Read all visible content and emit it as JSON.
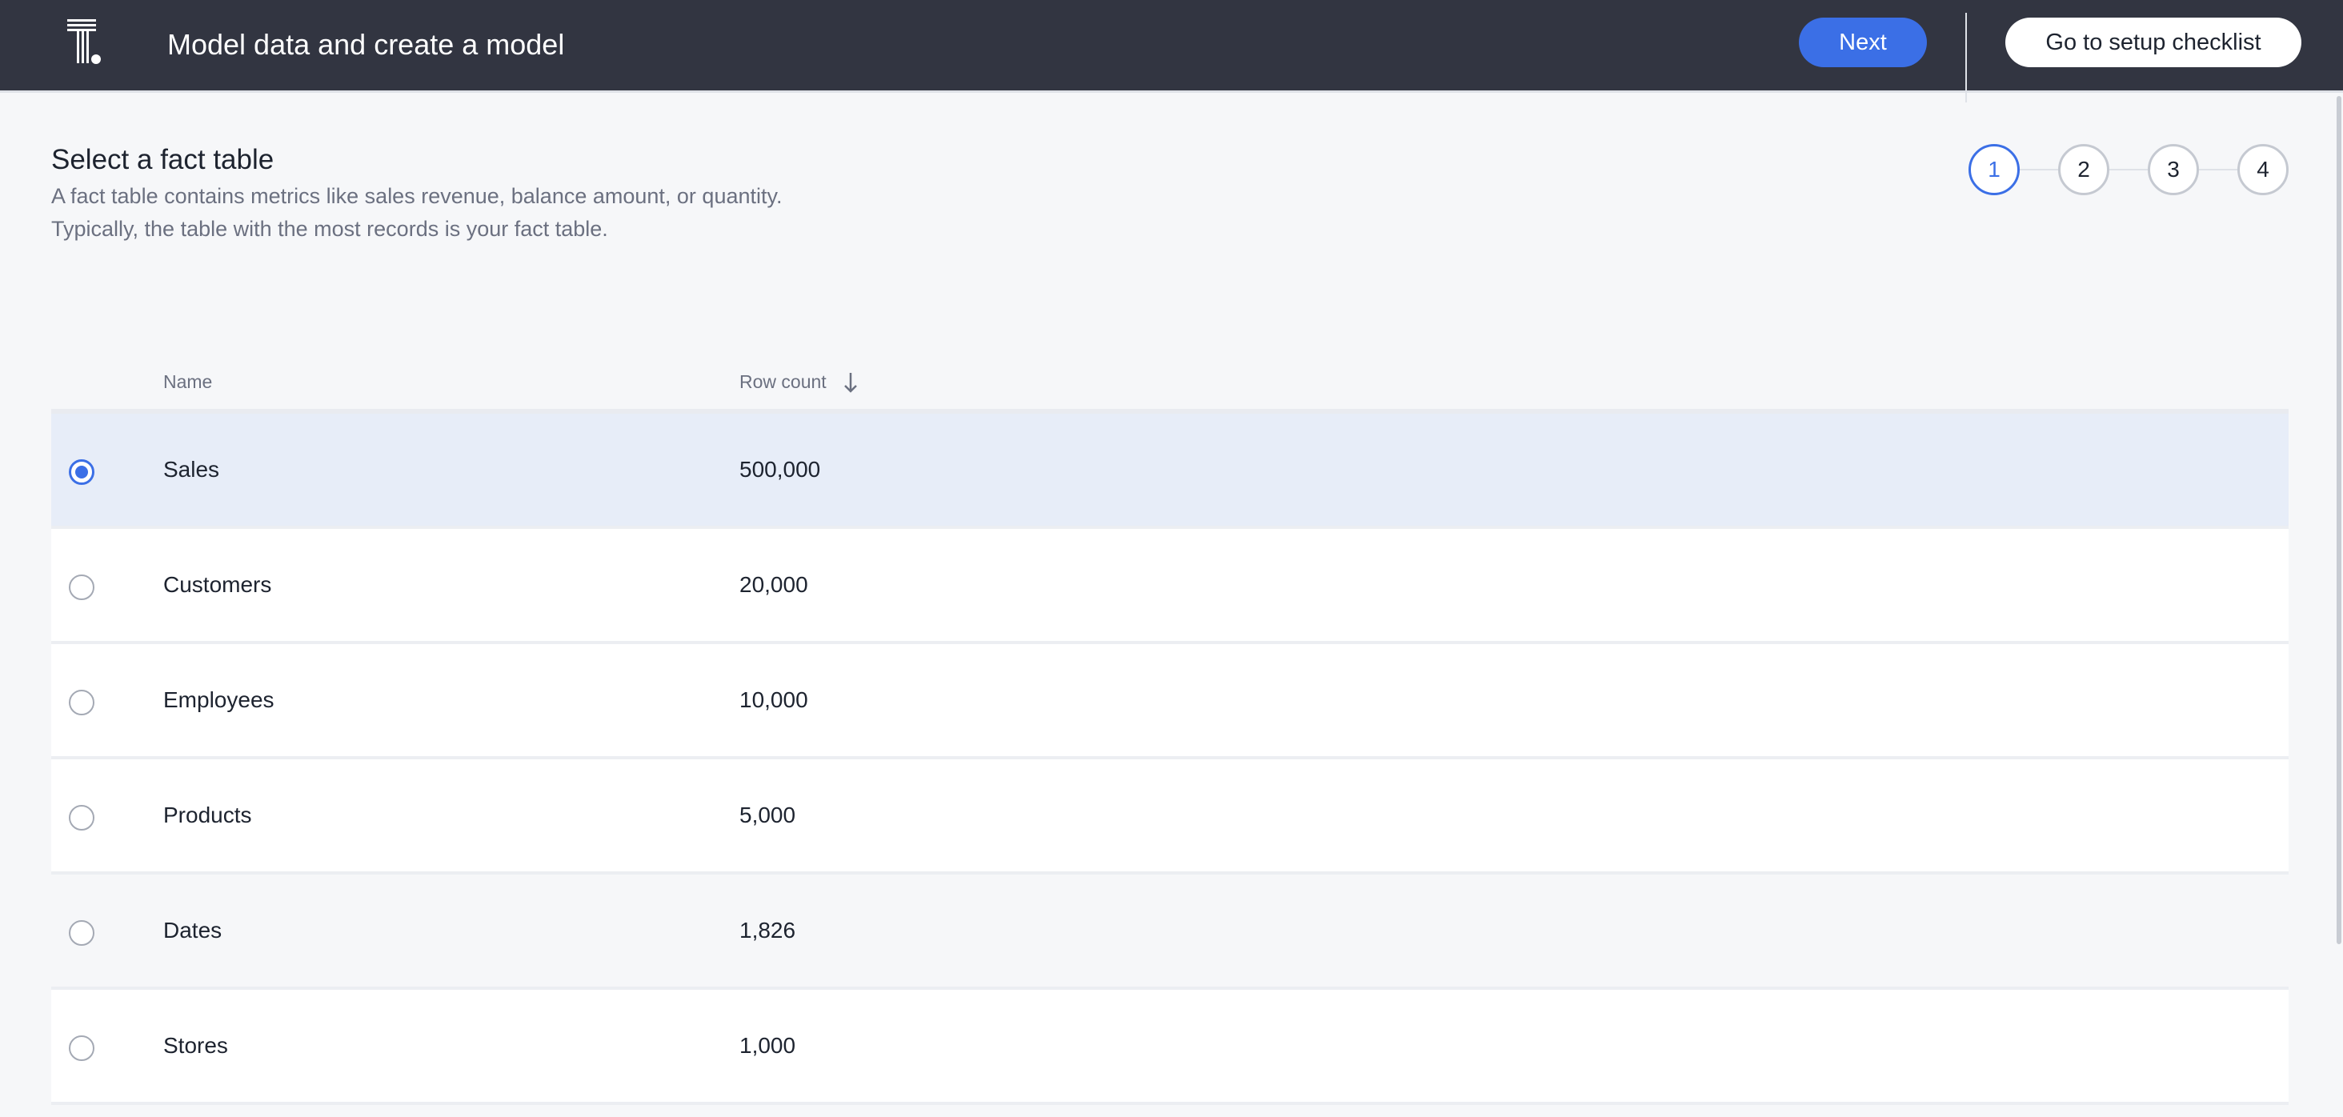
{
  "header": {
    "title": "Model data and create a model",
    "next_label": "Next",
    "setup_label": "Go to setup checklist",
    "logo_icon": "thoughtspot-logo"
  },
  "main": {
    "heading": "Select a fact table",
    "description_line1": "A fact table contains metrics like sales revenue, balance amount, or quantity.",
    "description_line2": "Typically, the table with the most records is your fact table.",
    "steps": [
      "1",
      "2",
      "3",
      "4"
    ],
    "active_step": 1,
    "accent_color": "#3b6fe6"
  },
  "table": {
    "columns": {
      "name": "Name",
      "row_count": "Row count",
      "sort": "descending"
    },
    "rows": [
      {
        "name": "Sales",
        "count": "500,000",
        "selected": true
      },
      {
        "name": "Customers",
        "count": "20,000",
        "selected": false
      },
      {
        "name": "Employees",
        "count": "10,000",
        "selected": false
      },
      {
        "name": "Products",
        "count": "5,000",
        "selected": false
      },
      {
        "name": "Dates",
        "count": "1,826",
        "selected": false
      },
      {
        "name": "Stores",
        "count": "1,000",
        "selected": false
      }
    ]
  }
}
